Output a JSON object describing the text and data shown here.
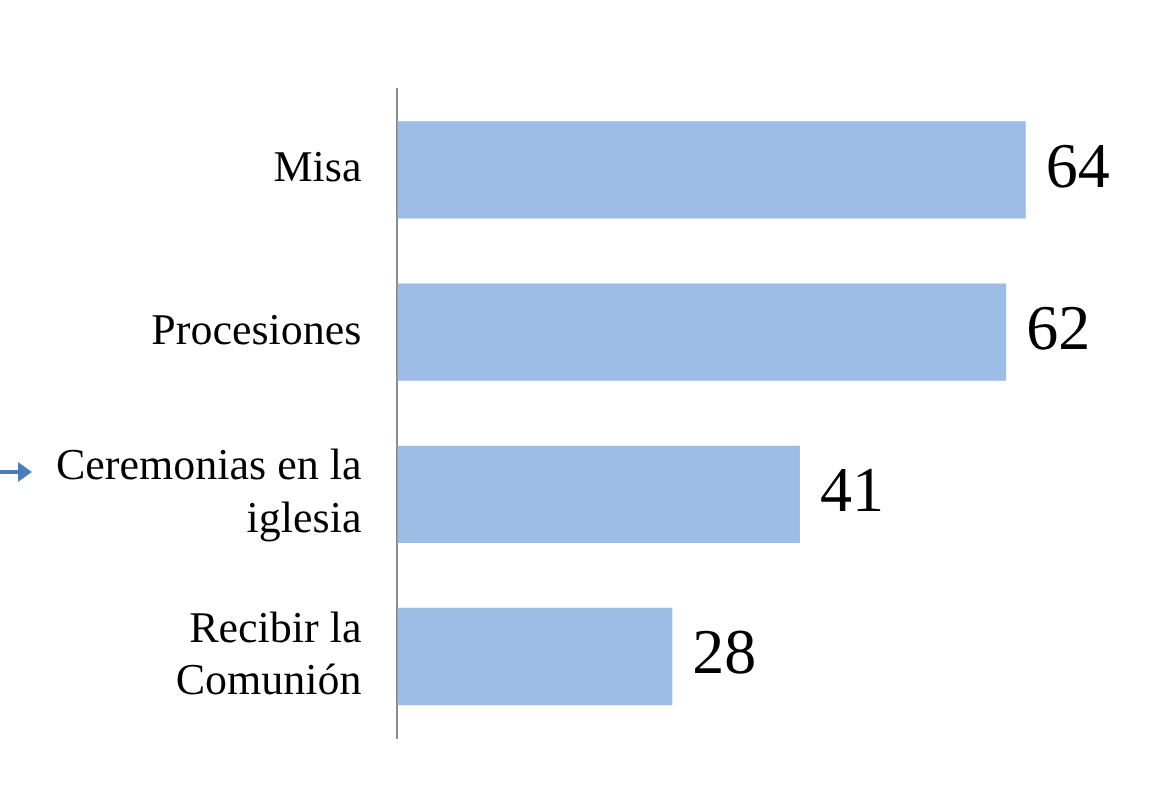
{
  "chart_data": {
    "type": "bar",
    "orientation": "horizontal",
    "categories": [
      "Misa",
      "Procesiones",
      "Ceremonias en la iglesia",
      "Recibir la Comunión"
    ],
    "values": [
      64,
      62,
      41,
      28
    ],
    "color": "#9dbde6",
    "data_labels": true,
    "legend": false
  }
}
